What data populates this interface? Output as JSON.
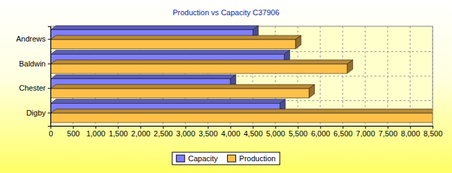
{
  "chart_data": {
    "type": "bar",
    "title": "Production vs Capacity  C37906",
    "orientation": "horizontal",
    "grid": true,
    "legend": "bottom",
    "categories": [
      "Andrews",
      "Baldwin",
      "Chester",
      "Digby"
    ],
    "series": [
      {
        "name": "Capacity",
        "color": "#8080ff",
        "values": [
          4500,
          5200,
          4000,
          5100
        ]
      },
      {
        "name": "Production",
        "color": "#ffc04a",
        "values": [
          5450,
          6600,
          5750,
          8500
        ]
      }
    ],
    "xlim": [
      0,
      8500
    ],
    "xticks": [
      0,
      500,
      {
        "value": 1000,
        "label": "1,000"
      },
      {
        "value": 1500,
        "label": "1,500"
      },
      {
        "value": 2000,
        "label": "2,000"
      },
      {
        "value": 2500,
        "label": "2,500"
      },
      {
        "value": 3000,
        "label": "3,000"
      },
      {
        "value": 3500,
        "label": "3,500"
      },
      {
        "value": 4000,
        "label": "4,000"
      },
      {
        "value": 4500,
        "label": "4,500"
      },
      {
        "value": 5000,
        "label": "5,000"
      },
      {
        "value": 5500,
        "label": "5,500"
      },
      {
        "value": 6000,
        "label": "6,000"
      },
      {
        "value": 6500,
        "label": "6,500"
      },
      {
        "value": 7000,
        "label": "7,000"
      },
      {
        "value": 7500,
        "label": "7,500"
      },
      {
        "value": 8000,
        "label": "8,000"
      },
      {
        "value": 8500,
        "label": "8,500"
      }
    ]
  }
}
